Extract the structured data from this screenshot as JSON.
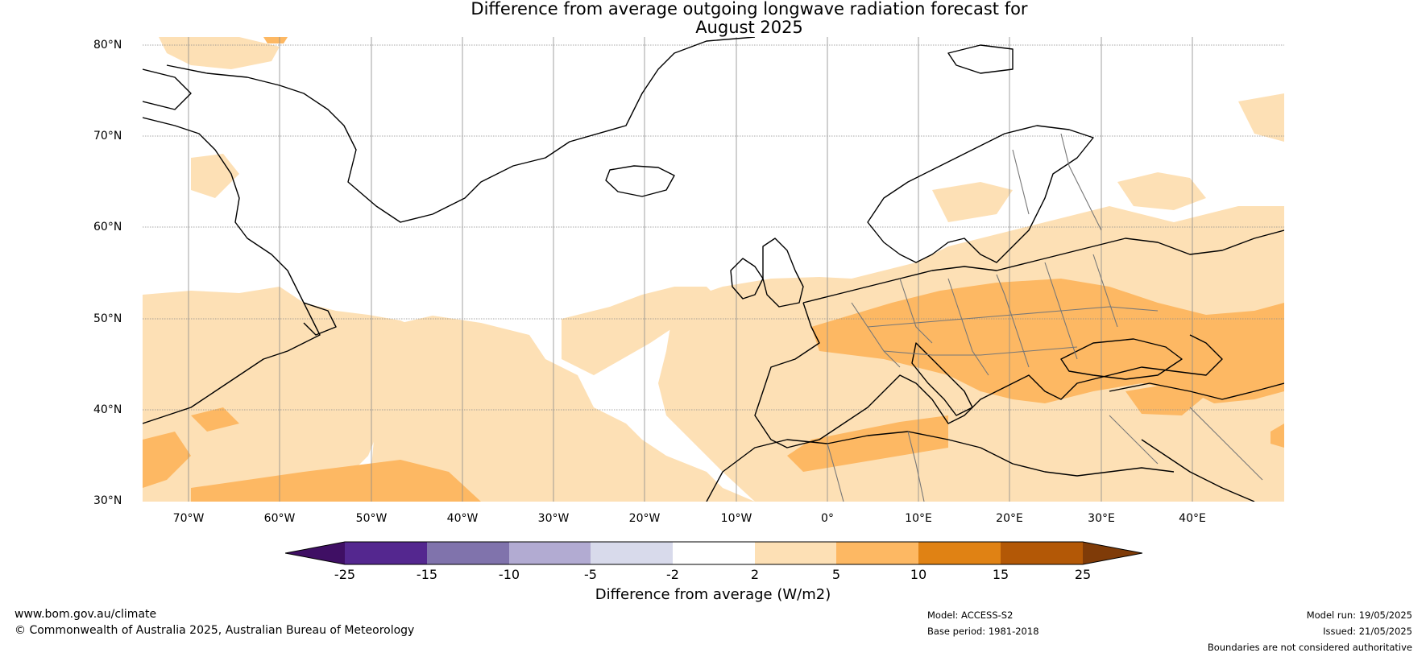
{
  "title": {
    "line1": "Difference from average outgoing longwave radiation forecast for",
    "line2": "August 2025"
  },
  "map": {
    "lat_labels": [
      "80°N",
      "70°N",
      "60°N",
      "50°N",
      "40°N",
      "30°N"
    ],
    "lon_labels": [
      "70°W",
      "60°W",
      "50°W",
      "40°W",
      "30°W",
      "20°W",
      "10°W",
      "0°",
      "10°E",
      "20°E",
      "30°E",
      "40°E"
    ]
  },
  "colorbar": {
    "ticks": [
      "-25",
      "-15",
      "-10",
      "-5",
      "-2",
      "2",
      "5",
      "10",
      "15",
      "25"
    ],
    "colors": [
      "#3f0f64",
      "#54278f",
      "#8073ac",
      "#b2abd2",
      "#d8daeb",
      "#ffffff",
      "#fde0b5",
      "#fdb863",
      "#e08214",
      "#b35806",
      "#7f3b08"
    ],
    "label": "Difference from average (W/m2)"
  },
  "footer": {
    "url": "www.bom.gov.au/climate",
    "copyright": "© Commonwealth of Australia 2025, Australian Bureau of Meteorology",
    "model": "Model: ACCESS-S2",
    "base_period": "Base period: 1981-2018",
    "model_run": "Model run: 19/05/2025",
    "issued": "Issued: 21/05/2025",
    "disclaimer": "Boundaries are not considered authoritative"
  }
}
